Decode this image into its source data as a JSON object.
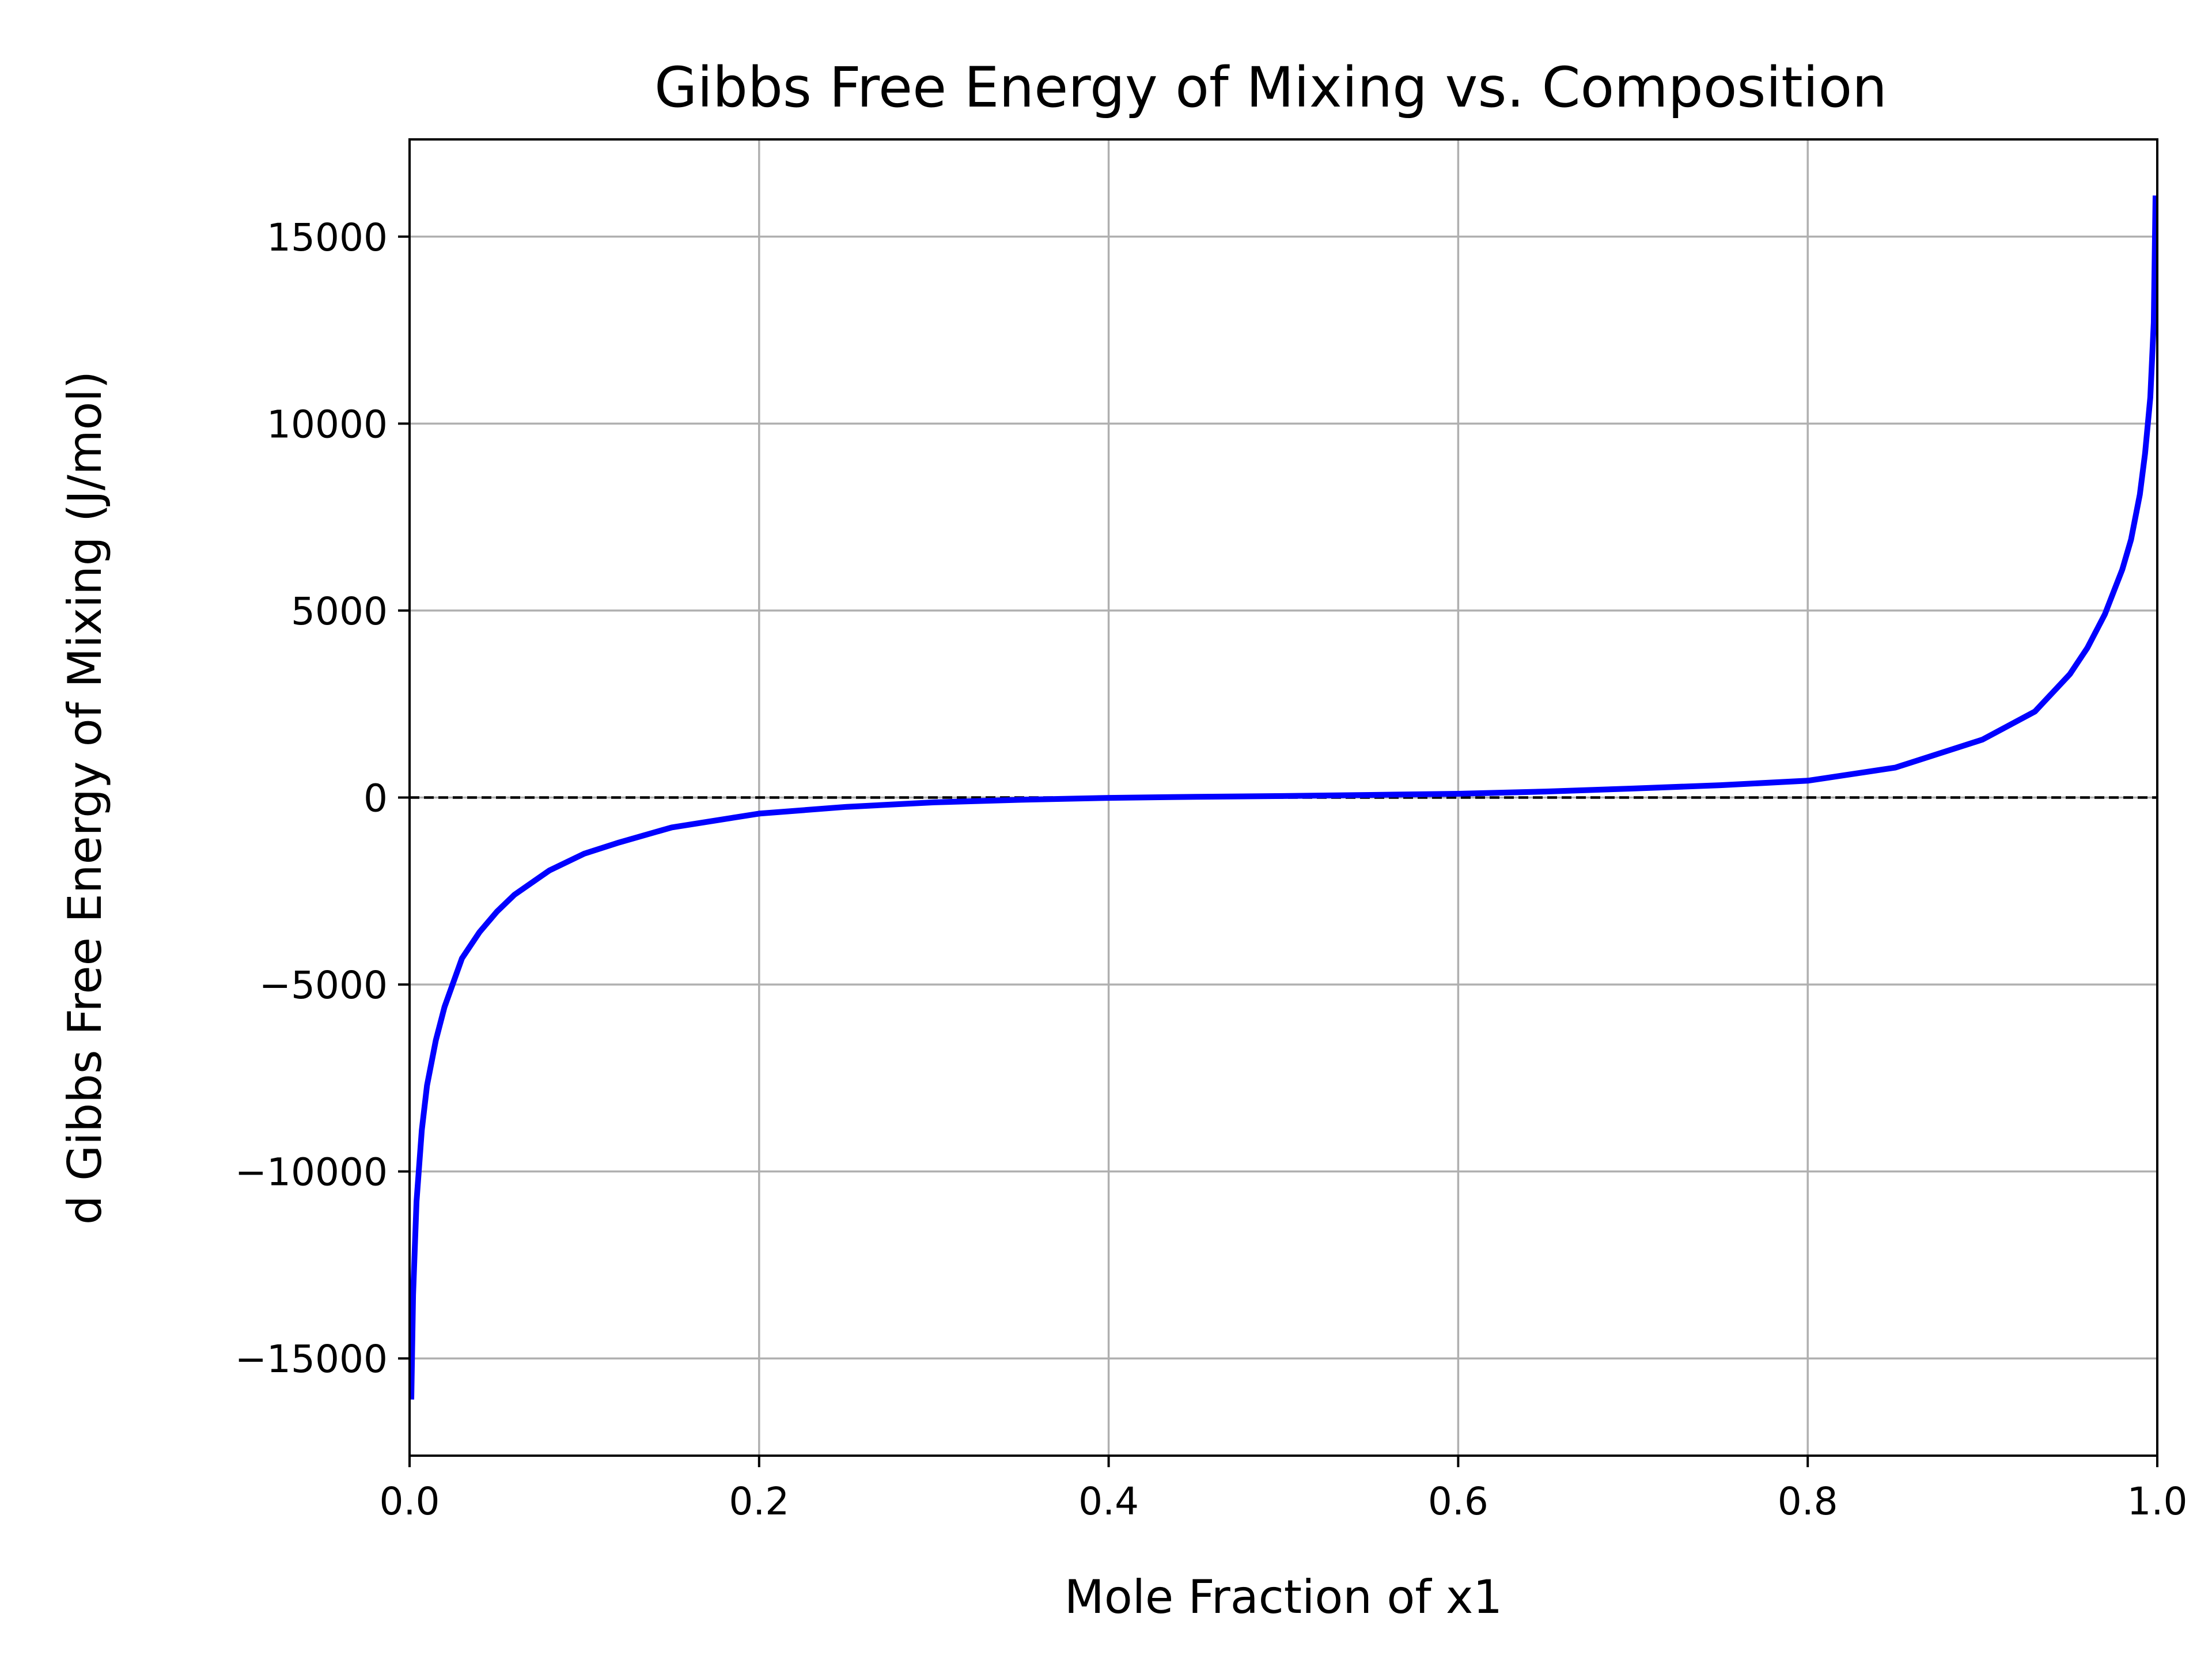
{
  "chart_data": {
    "type": "line",
    "title": "Gibbs Free Energy of Mixing vs. Composition",
    "xlabel": "Mole Fraction of x1",
    "ylabel": "d Gibbs Free Energy of Mixing (J/mol)",
    "xlim": [
      0.0,
      1.0
    ],
    "ylim": [
      -17600,
      17600
    ],
    "x_ticks": [
      0.0,
      0.2,
      0.4,
      0.6,
      0.8,
      1.0
    ],
    "x_tick_labels": [
      "0.0",
      "0.2",
      "0.4",
      "0.6",
      "0.8",
      "1.0"
    ],
    "y_ticks": [
      -15000,
      -10000,
      -5000,
      0,
      5000,
      10000,
      15000
    ],
    "y_tick_labels": [
      "−15000",
      "−10000",
      "−5000",
      "0",
      "5000",
      "10000",
      "15000"
    ],
    "grid": true,
    "reference_line": {
      "y": 0,
      "style": "dashed",
      "color": "#000000"
    },
    "series": [
      {
        "color": "#0000ff",
        "x": [
          0.001,
          0.002,
          0.004,
          0.007,
          0.01,
          0.015,
          0.02,
          0.03,
          0.04,
          0.05,
          0.06,
          0.08,
          0.1,
          0.12,
          0.15,
          0.2,
          0.25,
          0.3,
          0.35,
          0.4,
          0.45,
          0.5,
          0.55,
          0.6,
          0.65,
          0.7,
          0.75,
          0.8,
          0.85,
          0.9,
          0.93,
          0.95,
          0.96,
          0.97,
          0.98,
          0.985,
          0.99,
          0.993,
          0.996,
          0.998,
          0.999
        ],
        "y": [
          -16100,
          -13300,
          -10800,
          -8900,
          -7700,
          -6500,
          -5600,
          -4300,
          -3600,
          -3050,
          -2600,
          -1950,
          -1500,
          -1200,
          -800,
          -430,
          -250,
          -130,
          -60,
          -10,
          20,
          40,
          70,
          100,
          160,
          240,
          330,
          450,
          800,
          1550,
          2300,
          3300,
          4000,
          4900,
          6100,
          6900,
          8100,
          9200,
          10700,
          12700,
          16100
        ]
      }
    ]
  }
}
